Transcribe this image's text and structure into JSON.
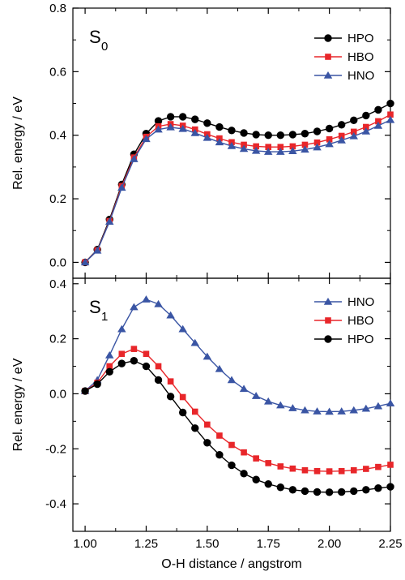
{
  "chart_data": [
    {
      "type": "line",
      "panel_label": "S",
      "panel_label_sub": "0",
      "ylabel": "Rel. energy / eV",
      "xlim": [
        0.95,
        2.25
      ],
      "ylim": [
        -0.05,
        0.8
      ],
      "yticks": [
        0.0,
        0.2,
        0.4,
        0.6,
        0.8
      ],
      "ytick_labels": [
        "0.0",
        "0.2",
        "0.4",
        "0.6",
        "0.8"
      ],
      "legend_position": "top-right",
      "x": [
        1.0,
        1.05,
        1.1,
        1.15,
        1.2,
        1.25,
        1.3,
        1.35,
        1.4,
        1.45,
        1.5,
        1.55,
        1.6,
        1.65,
        1.7,
        1.75,
        1.8,
        1.85,
        1.9,
        1.95,
        2.0,
        2.05,
        2.1,
        2.15,
        2.2,
        2.25
      ],
      "series": [
        {
          "name": "HPO",
          "color": "#000000",
          "marker": "circle",
          "values": [
            0.0,
            0.04,
            0.135,
            0.245,
            0.34,
            0.405,
            0.445,
            0.458,
            0.458,
            0.45,
            0.438,
            0.426,
            0.415,
            0.407,
            0.402,
            0.4,
            0.4,
            0.402,
            0.405,
            0.412,
            0.421,
            0.433,
            0.447,
            0.462,
            0.48,
            0.5
          ]
        },
        {
          "name": "HBO",
          "color": "#e8262a",
          "marker": "square",
          "values": [
            0.0,
            0.038,
            0.13,
            0.24,
            0.33,
            0.395,
            0.428,
            0.435,
            0.43,
            0.418,
            0.403,
            0.39,
            0.378,
            0.37,
            0.365,
            0.363,
            0.363,
            0.365,
            0.37,
            0.377,
            0.387,
            0.398,
            0.411,
            0.426,
            0.444,
            0.465
          ]
        },
        {
          "name": "HNO",
          "color": "#3a55a4",
          "marker": "triangle",
          "values": [
            0.0,
            0.037,
            0.128,
            0.235,
            0.325,
            0.388,
            0.418,
            0.425,
            0.42,
            0.407,
            0.392,
            0.378,
            0.366,
            0.357,
            0.351,
            0.348,
            0.348,
            0.35,
            0.355,
            0.362,
            0.372,
            0.384,
            0.397,
            0.412,
            0.43,
            0.448
          ]
        }
      ]
    },
    {
      "type": "line",
      "panel_label": "S",
      "panel_label_sub": "1",
      "xlabel": "O-H distance / angstrom",
      "ylabel": "Rel. energy / eV",
      "xlim": [
        0.95,
        2.25
      ],
      "ylim": [
        -0.5,
        0.42
      ],
      "xticks": [
        1.0,
        1.25,
        1.5,
        1.75,
        2.0,
        2.25
      ],
      "xtick_labels": [
        "1.00",
        "1.25",
        "1.50",
        "1.75",
        "2.00",
        "2.25"
      ],
      "yticks": [
        -0.4,
        -0.2,
        0.0,
        0.2,
        0.4
      ],
      "ytick_labels": [
        "-0.4",
        "-0.2",
        "0.0",
        "0.2",
        "0.4"
      ],
      "legend_position": "top-right",
      "x": [
        1.0,
        1.05,
        1.1,
        1.15,
        1.2,
        1.25,
        1.3,
        1.35,
        1.4,
        1.45,
        1.5,
        1.55,
        1.6,
        1.65,
        1.7,
        1.75,
        1.8,
        1.85,
        1.9,
        1.95,
        2.0,
        2.05,
        2.1,
        2.15,
        2.2,
        2.25
      ],
      "series": [
        {
          "name": "HNO",
          "color": "#3a55a4",
          "marker": "triangle",
          "values": [
            0.01,
            0.05,
            0.14,
            0.235,
            0.315,
            0.343,
            0.326,
            0.285,
            0.235,
            0.185,
            0.135,
            0.09,
            0.05,
            0.018,
            -0.008,
            -0.028,
            -0.042,
            -0.052,
            -0.06,
            -0.064,
            -0.065,
            -0.064,
            -0.06,
            -0.054,
            -0.045,
            -0.035
          ]
        },
        {
          "name": "HBO",
          "color": "#e8262a",
          "marker": "square",
          "values": [
            0.01,
            0.04,
            0.1,
            0.145,
            0.163,
            0.145,
            0.1,
            0.045,
            -0.012,
            -0.065,
            -0.112,
            -0.152,
            -0.186,
            -0.213,
            -0.235,
            -0.252,
            -0.264,
            -0.272,
            -0.278,
            -0.281,
            -0.282,
            -0.281,
            -0.278,
            -0.273,
            -0.266,
            -0.258
          ]
        },
        {
          "name": "HPO",
          "color": "#000000",
          "marker": "circle",
          "values": [
            0.01,
            0.035,
            0.08,
            0.11,
            0.12,
            0.1,
            0.05,
            -0.01,
            -0.068,
            -0.125,
            -0.178,
            -0.222,
            -0.26,
            -0.29,
            -0.312,
            -0.328,
            -0.34,
            -0.349,
            -0.354,
            -0.357,
            -0.358,
            -0.357,
            -0.354,
            -0.349,
            -0.343,
            -0.338
          ]
        }
      ]
    }
  ]
}
